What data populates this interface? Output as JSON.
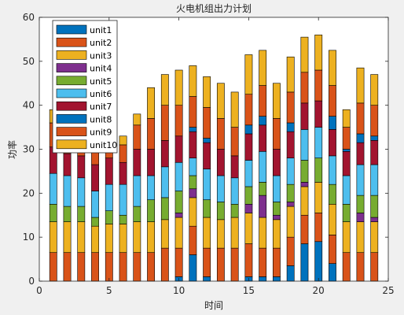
{
  "chart_data": {
    "type": "bar",
    "stacked": true,
    "title": "火电机组出力计划",
    "xlabel": "时间",
    "ylabel": "功率",
    "xlim": [
      0,
      25
    ],
    "ylim": [
      0,
      60
    ],
    "xticks": [
      0,
      5,
      10,
      15,
      20,
      25
    ],
    "yticks": [
      0,
      10,
      20,
      30,
      40,
      50,
      60
    ],
    "grid": false,
    "legend_position": "top-left",
    "x": [
      1,
      2,
      3,
      4,
      5,
      6,
      7,
      8,
      9,
      10,
      11,
      12,
      13,
      14,
      15,
      16,
      17,
      18,
      19,
      20,
      21,
      22,
      23,
      24
    ],
    "series": [
      {
        "name": "unit1",
        "color": "#0072BD",
        "values": [
          0,
          0,
          0,
          0,
          0,
          0,
          0,
          0,
          0,
          1,
          6,
          1,
          0,
          0,
          1,
          1,
          1,
          3.5,
          8.5,
          9,
          4,
          0,
          0,
          0
        ]
      },
      {
        "name": "unit2",
        "color": "#D95319",
        "values": [
          6.5,
          6.5,
          6.5,
          6.5,
          6.5,
          6.5,
          6.5,
          6.5,
          7.5,
          6.5,
          6.5,
          6.5,
          7.5,
          7.5,
          7.5,
          6.5,
          6.5,
          6.5,
          6.5,
          6.5,
          6.5,
          6.5,
          6.5,
          6.5
        ]
      },
      {
        "name": "unit3",
        "color": "#EDB120",
        "values": [
          7,
          7,
          7,
          6,
          6.5,
          6.5,
          7,
          7,
          6.5,
          7,
          6.5,
          7,
          6.5,
          7,
          7,
          7,
          6.5,
          7,
          6.5,
          7,
          7,
          7,
          7,
          7
        ]
      },
      {
        "name": "unit4",
        "color": "#7E2F8E",
        "values": [
          0,
          0,
          0,
          0,
          0,
          0,
          0,
          0,
          0,
          1,
          2,
          0,
          0,
          0,
          2,
          5,
          1,
          1,
          1,
          0,
          0,
          0,
          2,
          1
        ]
      },
      {
        "name": "unit5",
        "color": "#77AC30",
        "values": [
          4,
          3.5,
          3.5,
          2,
          3,
          2,
          3.5,
          5,
          5,
          5,
          3,
          4,
          4,
          3,
          4,
          3,
          3,
          4,
          5,
          5.5,
          4.5,
          4,
          4,
          5
        ]
      },
      {
        "name": "unit6",
        "color": "#4DBEEE",
        "values": [
          7,
          7,
          6.5,
          6,
          6,
          7,
          7,
          5.5,
          7,
          6.5,
          4,
          7,
          6,
          6,
          6,
          7,
          6,
          6,
          7,
          7,
          6.5,
          6.5,
          7,
          7
        ]
      },
      {
        "name": "unit7",
        "color": "#A2142F",
        "values": [
          6,
          5,
          5,
          6,
          6,
          5,
          6,
          6,
          6,
          6,
          6,
          6,
          6,
          5,
          6,
          6,
          6,
          6,
          6,
          6,
          6,
          5.5,
          5,
          5.5
        ]
      },
      {
        "name": "unit8",
        "color": "#0072BD",
        "values": [
          0,
          0,
          0,
          0,
          0,
          0,
          0,
          0,
          0,
          0,
          1,
          1,
          0,
          0,
          2,
          2,
          0,
          2,
          0,
          0,
          3,
          0.5,
          2,
          1
        ]
      },
      {
        "name": "unit9",
        "color": "#D95319",
        "values": [
          5.5,
          6,
          5.5,
          4.5,
          3,
          4,
          5.5,
          7,
          8,
          7,
          7,
          7,
          7,
          6.5,
          7,
          7,
          7,
          7,
          7,
          7,
          7,
          5,
          7,
          7
        ]
      },
      {
        "name": "unit10",
        "color": "#EDB120",
        "values": [
          3,
          4,
          4,
          4,
          2,
          2,
          2.5,
          7,
          7,
          8,
          7,
          7,
          8,
          8,
          9,
          8,
          8,
          8,
          8,
          8,
          8,
          4,
          8,
          7
        ]
      }
    ]
  }
}
